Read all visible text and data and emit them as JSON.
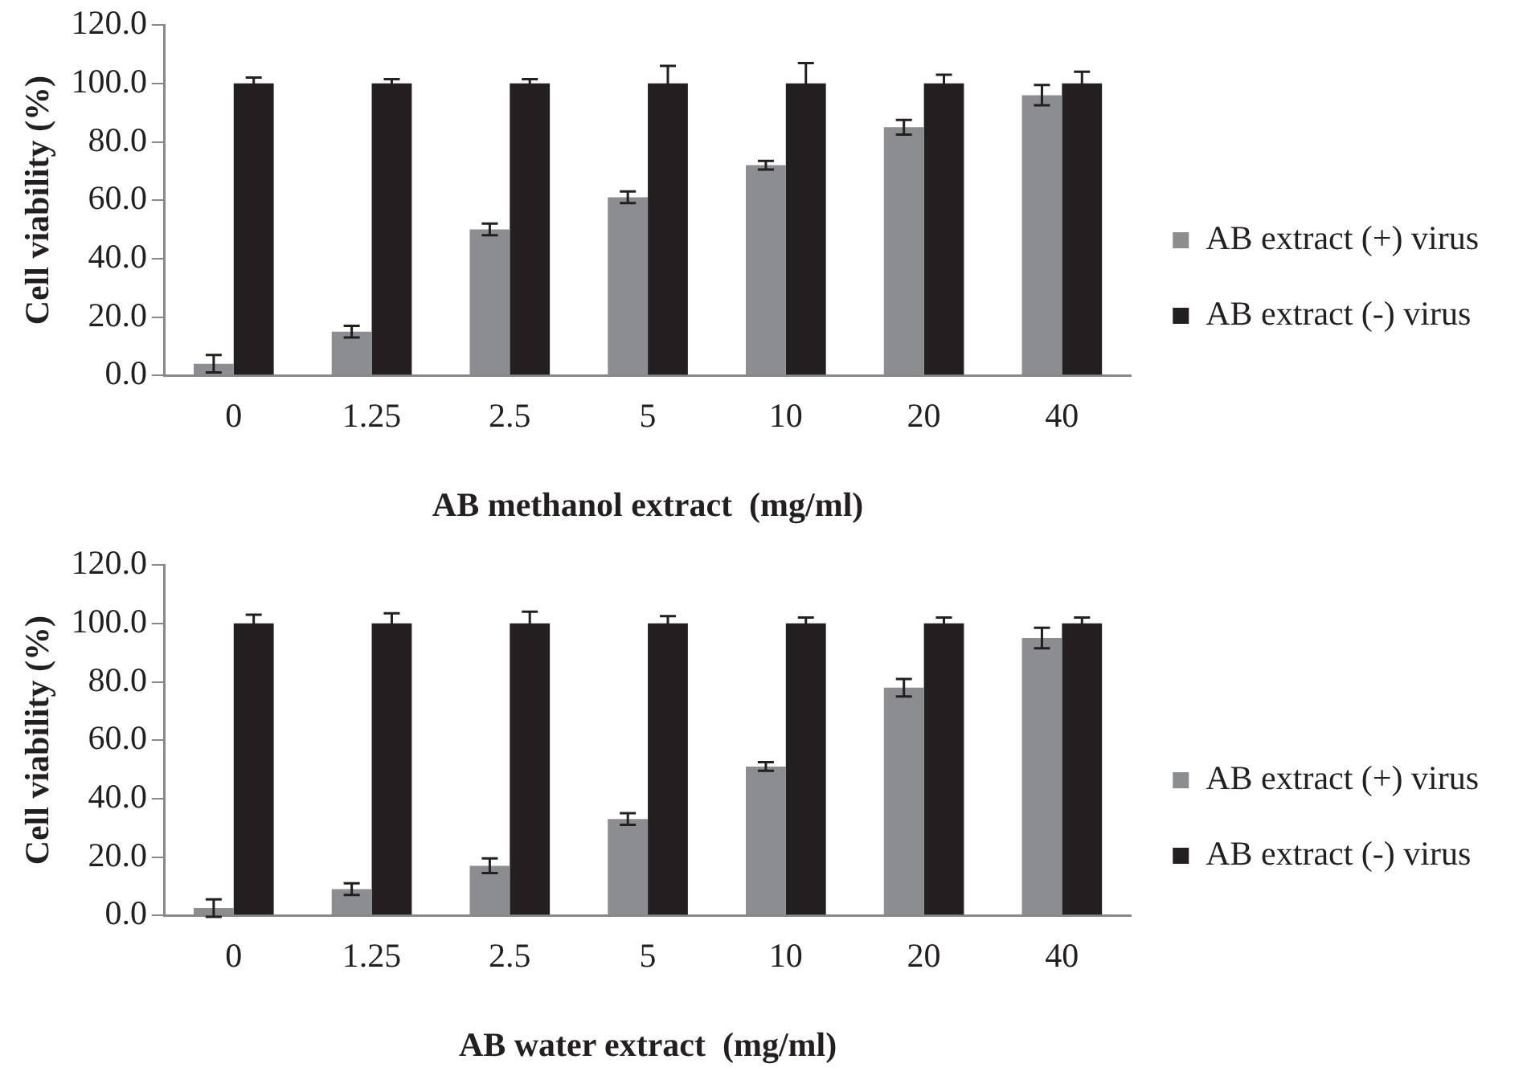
{
  "chart_data": [
    {
      "type": "bar",
      "xlabel": "AB methanol extract  (mg/ml)",
      "ylabel": "Cell viability (%)",
      "categories": [
        "0",
        "1.25",
        "2.5",
        "5",
        "10",
        "20",
        "40"
      ],
      "series": [
        {
          "name": "AB extract (+) virus",
          "color": "#8c8d91",
          "values": [
            4,
            15,
            50,
            61,
            72,
            85,
            96
          ],
          "errors": [
            3,
            2,
            2,
            2,
            1.5,
            2.5,
            3.5
          ]
        },
        {
          "name": "AB extract (-) virus",
          "color": "#231f20",
          "values": [
            100,
            100,
            100,
            100,
            100,
            100,
            100
          ],
          "errors": [
            2,
            1.5,
            1.5,
            6,
            7,
            3,
            4
          ]
        }
      ],
      "ylim": [
        0,
        120
      ],
      "yticks": [
        {
          "value": 0,
          "label": "0.0"
        },
        {
          "value": 20,
          "label": "20.0"
        },
        {
          "value": 40,
          "label": "40.0"
        },
        {
          "value": 60,
          "label": "60.0"
        },
        {
          "value": 80,
          "label": "80.0"
        },
        {
          "value": 100,
          "label": "100.0"
        },
        {
          "value": 120,
          "label": "120.0"
        }
      ],
      "grid": false,
      "legend": "right"
    },
    {
      "type": "bar",
      "xlabel": "AB water extract  (mg/ml)",
      "ylabel": "Cell viability (%)",
      "categories": [
        "0",
        "1.25",
        "2.5",
        "5",
        "10",
        "20",
        "40"
      ],
      "series": [
        {
          "name": "AB extract (+) virus",
          "color": "#8c8d91",
          "values": [
            2.5,
            9,
            17,
            33,
            51,
            78,
            95
          ],
          "errors": [
            3,
            2,
            2.5,
            2,
            1.5,
            3,
            3.5
          ]
        },
        {
          "name": "AB extract (-) virus",
          "color": "#231f20",
          "values": [
            100,
            100,
            100,
            100,
            100,
            100,
            100
          ],
          "errors": [
            3,
            3.5,
            4,
            2.5,
            2,
            2,
            2
          ]
        }
      ],
      "ylim": [
        0,
        120
      ],
      "yticks": [
        {
          "value": 0,
          "label": "0.0"
        },
        {
          "value": 20,
          "label": "20.0"
        },
        {
          "value": 40,
          "label": "40.0"
        },
        {
          "value": 60,
          "label": "60.0"
        },
        {
          "value": 80,
          "label": "80.0"
        },
        {
          "value": 100,
          "label": "100.0"
        },
        {
          "value": 120,
          "label": "120.0"
        }
      ],
      "grid": false,
      "legend": "right"
    }
  ]
}
